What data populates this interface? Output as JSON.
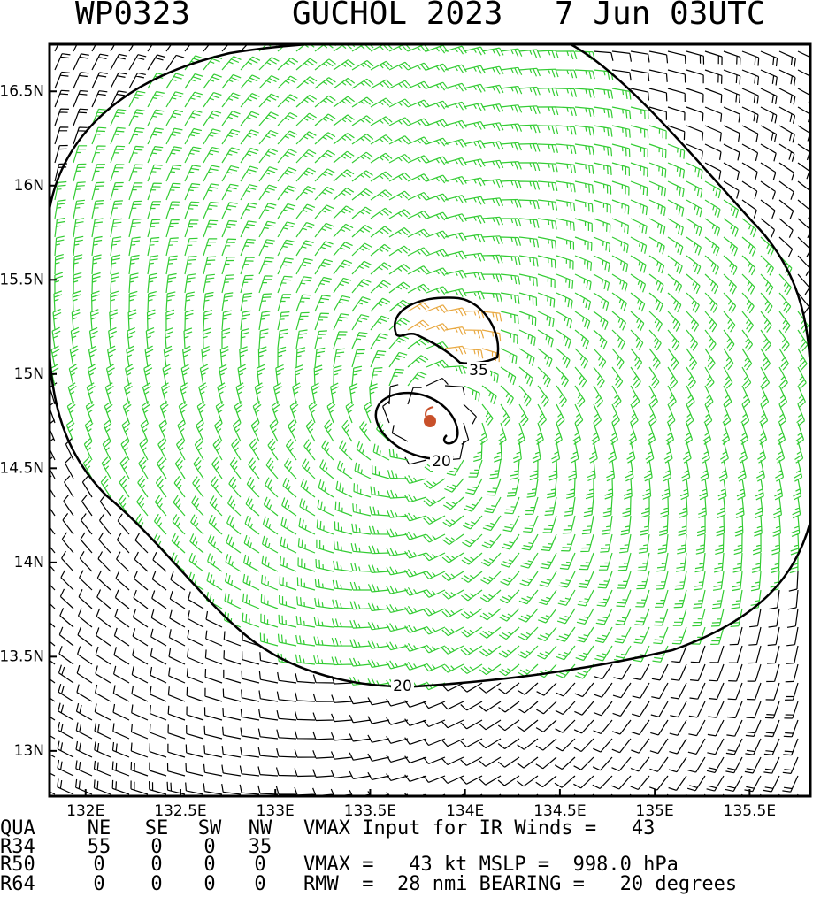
{
  "header": {
    "storm_id": "WP0323",
    "storm_name": "GUCHOL 2023",
    "time": "7 Jun 03UTC"
  },
  "chart_data": {
    "type": "wind-barb-map",
    "xlim": [
      131.81,
      135.82
    ],
    "ylim": [
      12.76,
      16.75
    ],
    "xticks": [
      {
        "value": 132,
        "label": "132E"
      },
      {
        "value": 132.5,
        "label": "132.5E"
      },
      {
        "value": 133,
        "label": "133E"
      },
      {
        "value": 133.5,
        "label": "133.5E"
      },
      {
        "value": 134,
        "label": "134E"
      },
      {
        "value": 134.5,
        "label": "134.5E"
      },
      {
        "value": 135,
        "label": "135E"
      },
      {
        "value": 135.5,
        "label": "135.5E"
      }
    ],
    "yticks": [
      {
        "value": 13,
        "label": "13N"
      },
      {
        "value": 13.5,
        "label": "13.5N"
      },
      {
        "value": 14,
        "label": "14N"
      },
      {
        "value": 14.5,
        "label": "14.5N"
      },
      {
        "value": 15,
        "label": "15N"
      },
      {
        "value": 15.5,
        "label": "15.5N"
      },
      {
        "value": 16,
        "label": "16N"
      },
      {
        "value": 16.5,
        "label": "16.5N"
      }
    ],
    "contour_labels": [
      20,
      35,
      20
    ]
  },
  "table": {
    "rows": [
      [
        "QUA",
        "NE",
        "SE",
        "SW",
        "NW"
      ],
      [
        "R34",
        "55",
        "0",
        "0",
        "35"
      ],
      [
        "R50",
        "0",
        "0",
        "0",
        "0"
      ],
      [
        "R64",
        "0",
        "0",
        "0",
        "0"
      ]
    ],
    "notes": [
      "VMAX Input for IR Winds =   43",
      "",
      "VMAX =   43 kt MSLP =  998.0 hPa",
      "RMW  =  28 nmi BEARING =   20 degrees"
    ]
  }
}
